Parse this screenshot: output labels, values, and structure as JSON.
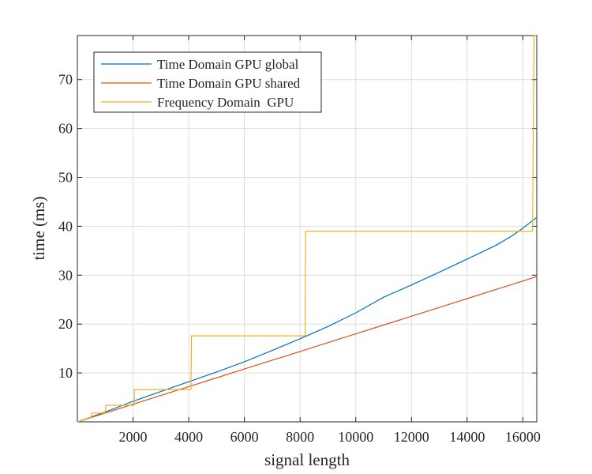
{
  "chart_data": {
    "type": "line",
    "title": "",
    "xlabel": "signal length",
    "ylabel": "time (ms)",
    "xlim": [
      0,
      16500
    ],
    "ylim": [
      0,
      79
    ],
    "xticks": [
      2000,
      4000,
      6000,
      8000,
      10000,
      12000,
      14000,
      16000
    ],
    "xtick_labels": [
      "2000",
      "4000",
      "6000",
      "8000",
      "10000",
      "12000",
      "14000",
      "16000"
    ],
    "yticks": [
      10,
      20,
      30,
      40,
      50,
      60,
      70
    ],
    "ytick_labels": [
      "10",
      "20",
      "30",
      "40",
      "50",
      "60",
      "70"
    ],
    "grid": true,
    "legend_position": "top-left",
    "series": [
      {
        "name": "Time Domain GPU global",
        "color": "#0072BD",
        "x": [
          0,
          1000,
          2000,
          3000,
          4000,
          5000,
          6000,
          7000,
          8000,
          9000,
          10000,
          11000,
          12000,
          13000,
          14000,
          15000,
          15600,
          16000,
          16500
        ],
        "y": [
          0,
          2.0,
          4.2,
          6.2,
          8.2,
          10.2,
          12.3,
          14.6,
          17.0,
          19.5,
          22.3,
          25.5,
          28.0,
          30.6,
          33.3,
          36.0,
          38.0,
          39.6,
          41.8
        ]
      },
      {
        "name": "Time Domain GPU shared",
        "color": "#D95319",
        "x": [
          0,
          2000,
          4000,
          6000,
          8000,
          10000,
          12000,
          14000,
          16000,
          16500
        ],
        "y": [
          0,
          3.6,
          7.2,
          10.8,
          14.4,
          18.0,
          21.6,
          25.2,
          28.8,
          29.7
        ]
      },
      {
        "name": "Frequency Domain  GPU",
        "color": "#EDB120",
        "x": [
          0,
          500,
          520,
          1000,
          1024,
          2040,
          2050,
          4080,
          4100,
          8180,
          8200,
          16350,
          16400,
          16450
        ],
        "y": [
          0,
          1.0,
          1.8,
          1.8,
          3.4,
          3.4,
          6.6,
          6.6,
          17.6,
          17.6,
          39.0,
          39.0,
          79,
          79
        ]
      }
    ]
  }
}
